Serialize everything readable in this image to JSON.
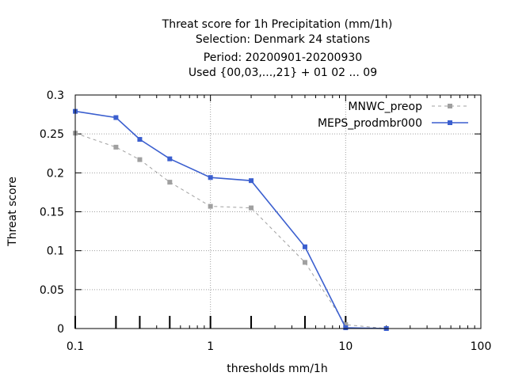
{
  "chart_data": {
    "type": "line",
    "title_lines": [
      "Threat score  for 1h Precipitation (mm/1h)",
      "Selection: Denmark     24 stations",
      "Period: 20200901-20200930",
      "Used {00,03,...,21} + 01 02 ... 09"
    ],
    "xlabel": "thresholds mm/1h",
    "ylabel": "Threat score",
    "x_scale": "log",
    "xlim": [
      0.1,
      100
    ],
    "ylim": [
      0,
      0.3
    ],
    "x_ticks": [
      0.1,
      1,
      10,
      100
    ],
    "x_tick_labels": [
      "0.1",
      "1",
      "10",
      "100"
    ],
    "y_ticks": [
      0,
      0.05,
      0.1,
      0.15,
      0.2,
      0.25,
      0.3
    ],
    "y_tick_labels": [
      "0",
      "0.05",
      "0.1",
      "0.15",
      "0.2",
      "0.25",
      "0.3"
    ],
    "grid": true,
    "legend_position": "top-right",
    "threshold_markers": [
      0.1,
      0.2,
      0.3,
      0.5,
      1,
      2,
      5,
      10
    ],
    "series": [
      {
        "name": "MNWC_preop",
        "color": "#a0a0a0",
        "style": "dashed",
        "x": [
          0.1,
          0.2,
          0.3,
          0.5,
          1,
          2,
          5,
          10,
          20
        ],
        "values": [
          0.251,
          0.233,
          0.217,
          0.188,
          0.157,
          0.155,
          0.085,
          0.005,
          0.0
        ]
      },
      {
        "name": "MEPS_prodmbr000",
        "color": "#3b5fcf",
        "style": "solid",
        "x": [
          0.1,
          0.2,
          0.3,
          0.5,
          1,
          2,
          5,
          10,
          20
        ],
        "values": [
          0.279,
          0.271,
          0.243,
          0.218,
          0.194,
          0.19,
          0.105,
          0.001,
          0.0
        ]
      }
    ]
  }
}
